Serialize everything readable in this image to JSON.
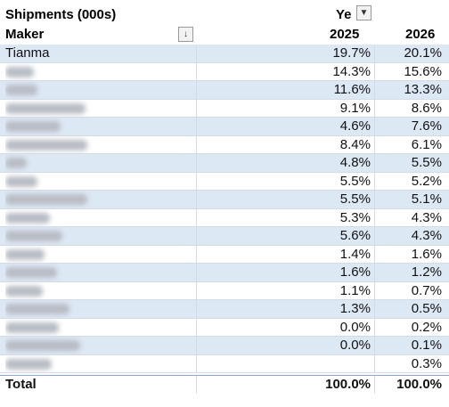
{
  "header": {
    "title": "Shipments (000s)",
    "column_field": "Ye",
    "row_field": "Maker",
    "columns": [
      "2025",
      "2026"
    ]
  },
  "table": {
    "rows": [
      [
        "Tianma",
        "19.7%",
        "20.1%"
      ],
      [
        null,
        "14.3%",
        "15.6%"
      ],
      [
        null,
        "11.6%",
        "13.3%"
      ],
      [
        null,
        "9.1%",
        "8.6%"
      ],
      [
        null,
        "4.6%",
        "7.6%"
      ],
      [
        null,
        "8.4%",
        "6.1%"
      ],
      [
        null,
        "4.8%",
        "5.5%"
      ],
      [
        null,
        "5.5%",
        "5.2%"
      ],
      [
        null,
        "5.5%",
        "5.1%"
      ],
      [
        null,
        "5.3%",
        "4.3%"
      ],
      [
        null,
        "5.6%",
        "4.3%"
      ],
      [
        null,
        "1.4%",
        "1.6%"
      ],
      [
        null,
        "1.6%",
        "1.2%"
      ],
      [
        null,
        "1.1%",
        "0.7%"
      ],
      [
        null,
        "1.3%",
        "0.5%"
      ],
      [
        null,
        "0.0%",
        "0.2%"
      ],
      [
        null,
        "0.0%",
        "0.1%"
      ],
      [
        null,
        null,
        "0.3%"
      ]
    ],
    "total": [
      "Total",
      "100.0%",
      "100.0%"
    ]
  }
}
